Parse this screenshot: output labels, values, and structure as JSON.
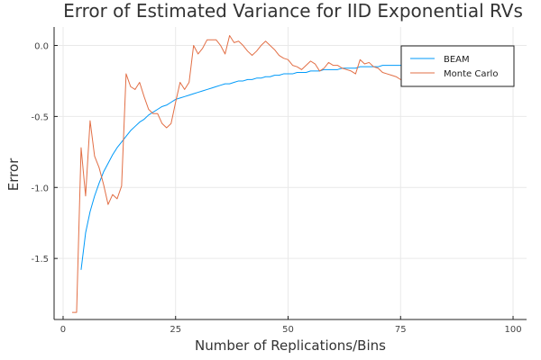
{
  "chart_data": {
    "type": "line",
    "title": "Error of Estimated Variance for IID Exponential RVs",
    "xlabel": "Number of Replications/Bins",
    "ylabel": "Error",
    "xlim": [
      -2,
      103
    ],
    "ylim": [
      -1.93,
      0.13
    ],
    "x_ticks": [
      0,
      25,
      50,
      75,
      100
    ],
    "x_tick_labels": [
      "0",
      "25",
      "50",
      "75",
      "100"
    ],
    "y_ticks": [
      0.0,
      -0.5,
      -1.0,
      -1.5
    ],
    "y_tick_labels": [
      "0.0",
      "-0.5",
      "-1.0",
      "-1.5"
    ],
    "grid": true,
    "legend_position": "top-right",
    "colors": {
      "beam": "#009AF9",
      "monte_carlo": "#E26F46",
      "axis": "#222222",
      "grid": "#e9e9e9"
    },
    "series": [
      {
        "name": "BEAM",
        "x": [
          4,
          5,
          6,
          7,
          8,
          9,
          10,
          11,
          12,
          13,
          14,
          15,
          16,
          17,
          18,
          19,
          20,
          21,
          22,
          23,
          24,
          25,
          26,
          27,
          28,
          29,
          30,
          31,
          32,
          33,
          34,
          35,
          36,
          37,
          38,
          39,
          40,
          41,
          42,
          43,
          44,
          45,
          46,
          47,
          48,
          49,
          50,
          51,
          52,
          53,
          54,
          55,
          56,
          57,
          58,
          59,
          60,
          61,
          62,
          63,
          64,
          65,
          66,
          67,
          68,
          69,
          70,
          71,
          72,
          73,
          74,
          75,
          76,
          77,
          78,
          79,
          80,
          81,
          82,
          83,
          84,
          85,
          86,
          87,
          88,
          89,
          90,
          91,
          92,
          93,
          94,
          95,
          96,
          97,
          98,
          99,
          100
        ],
        "values": [
          -1.58,
          -1.32,
          -1.17,
          -1.06,
          -0.97,
          -0.89,
          -0.83,
          -0.77,
          -0.72,
          -0.68,
          -0.64,
          -0.6,
          -0.57,
          -0.54,
          -0.52,
          -0.49,
          -0.47,
          -0.45,
          -0.43,
          -0.42,
          -0.4,
          -0.38,
          -0.37,
          -0.36,
          -0.35,
          -0.34,
          -0.33,
          -0.32,
          -0.31,
          -0.3,
          -0.29,
          -0.28,
          -0.27,
          -0.27,
          -0.26,
          -0.25,
          -0.25,
          -0.24,
          -0.24,
          -0.23,
          -0.23,
          -0.22,
          -0.22,
          -0.21,
          -0.21,
          -0.2,
          -0.2,
          -0.2,
          -0.19,
          -0.19,
          -0.19,
          -0.18,
          -0.18,
          -0.18,
          -0.17,
          -0.17,
          -0.17,
          -0.17,
          -0.16,
          -0.16,
          -0.16,
          -0.16,
          -0.15,
          -0.15,
          -0.15,
          -0.15,
          -0.15,
          -0.14,
          -0.14,
          -0.14,
          -0.14,
          -0.14,
          -0.13,
          -0.13,
          -0.13,
          -0.13,
          -0.13,
          -0.13,
          -0.12,
          -0.12,
          -0.12,
          -0.12,
          -0.12,
          -0.12,
          -0.12,
          -0.11,
          -0.11,
          -0.11,
          -0.11,
          -0.11,
          -0.11,
          -0.11,
          -0.11,
          -0.1,
          -0.1,
          -0.1,
          -0.1
        ]
      },
      {
        "name": "Monte Carlo",
        "x": [
          2,
          3,
          4,
          5,
          6,
          7,
          8,
          9,
          10,
          11,
          12,
          13,
          14,
          15,
          16,
          17,
          18,
          19,
          20,
          21,
          22,
          23,
          24,
          25,
          26,
          27,
          28,
          29,
          30,
          31,
          32,
          33,
          34,
          35,
          36,
          37,
          38,
          39,
          40,
          41,
          42,
          43,
          44,
          45,
          46,
          47,
          48,
          49,
          50,
          51,
          52,
          53,
          54,
          55,
          56,
          57,
          58,
          59,
          60,
          61,
          62,
          63,
          64,
          65,
          66,
          67,
          68,
          69,
          70,
          71,
          72,
          73,
          74,
          75,
          76,
          77,
          78,
          79,
          80,
          81,
          82,
          83,
          84,
          85,
          86,
          87,
          88,
          89,
          90,
          91,
          92,
          93,
          94,
          95,
          96,
          97,
          98,
          99,
          100
        ],
        "values": [
          -1.88,
          -1.88,
          -0.72,
          -1.06,
          -0.53,
          -0.78,
          -0.86,
          -0.98,
          -1.12,
          -1.05,
          -1.08,
          -0.99,
          -0.2,
          -0.29,
          -0.31,
          -0.26,
          -0.36,
          -0.45,
          -0.48,
          -0.48,
          -0.55,
          -0.58,
          -0.55,
          -0.4,
          -0.26,
          -0.31,
          -0.26,
          0.0,
          -0.06,
          -0.02,
          0.04,
          0.04,
          0.04,
          0.0,
          -0.06,
          0.07,
          0.02,
          0.03,
          0.0,
          -0.04,
          -0.07,
          -0.04,
          0.0,
          0.03,
          0.0,
          -0.03,
          -0.07,
          -0.09,
          -0.1,
          -0.14,
          -0.15,
          -0.17,
          -0.14,
          -0.11,
          -0.13,
          -0.18,
          -0.16,
          -0.12,
          -0.14,
          -0.14,
          -0.16,
          -0.17,
          -0.18,
          -0.2,
          -0.1,
          -0.13,
          -0.12,
          -0.15,
          -0.16,
          -0.19,
          -0.2,
          -0.21,
          -0.22,
          -0.24,
          -0.24,
          -0.2,
          -0.18,
          -0.2,
          -0.16,
          -0.16,
          -0.22,
          -0.21,
          -0.16,
          -0.15,
          -0.14,
          -0.17,
          -0.17,
          -0.13,
          -0.13,
          -0.16,
          -0.17,
          -0.16,
          -0.14,
          -0.15,
          -0.18,
          -0.23,
          -0.25,
          -0.27,
          -0.28
        ]
      }
    ]
  }
}
